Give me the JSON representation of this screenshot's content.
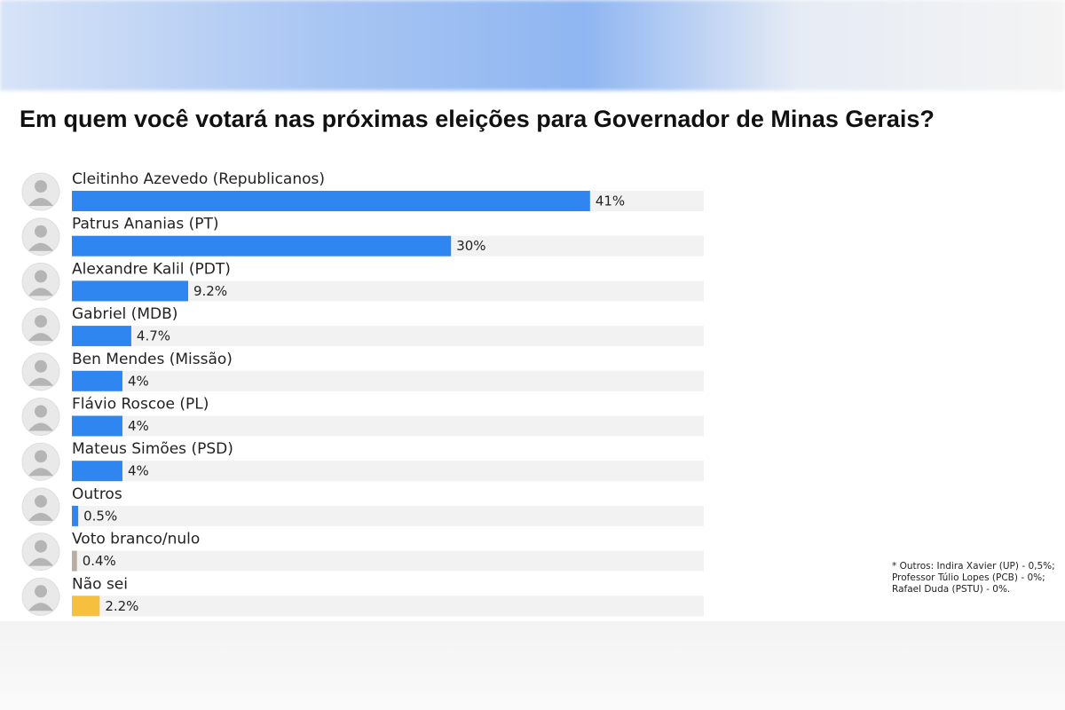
{
  "chart_data": {
    "type": "bar",
    "orientation": "horizontal",
    "title": "Em quem você votará nas próximas eleições para Governador de Minas Gerais?",
    "categories": [
      "Cleitinho Azevedo (Republicanos)",
      "Patrus Ananias (PT)",
      "Alexandre Kalil (PDT)",
      "Gabriel (MDB)",
      "Ben Mendes (Missão)",
      "Flávio Roscoe (PL)",
      "Mateus Simões (PSD)",
      "Outros",
      "Voto branco/nulo",
      "Não sei"
    ],
    "values": [
      41,
      30,
      9.2,
      4.7,
      4,
      4,
      4,
      0.5,
      0.4,
      2.2
    ],
    "value_labels": [
      "41%",
      "30%",
      "9.2%",
      "4.7%",
      "4%",
      "4%",
      "4%",
      "0.5%",
      "0.4%",
      "2.2%"
    ],
    "colors": [
      "#2f86f0",
      "#2f86f0",
      "#2f86f0",
      "#2f86f0",
      "#2f86f0",
      "#2f86f0",
      "#2f86f0",
      "#2f86f0",
      "#b8aca4",
      "#f6bf3e"
    ],
    "xlim": [
      0,
      50
    ],
    "notes": [
      "* Outros: Indira Xavier (UP) - 0,5%;",
      "Professor Túlio Lopes (PCB) - 0%;",
      "Rafael Duda (PSTU) - 0%."
    ]
  }
}
